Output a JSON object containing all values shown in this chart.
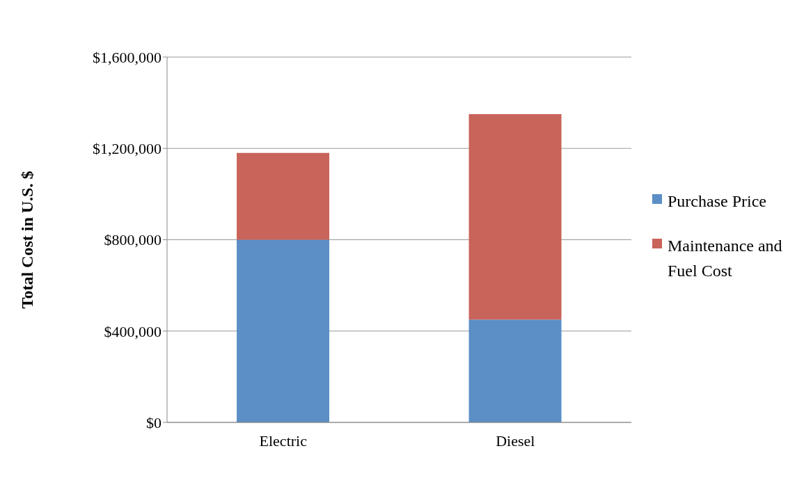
{
  "chart_data": {
    "type": "bar",
    "stacked": true,
    "ylabel": "Total Cost in U.S. $",
    "categories": [
      "Electric",
      "Diesel"
    ],
    "series": [
      {
        "name": "Purchase Price",
        "color": "#5b8fc5",
        "values": [
          800000,
          450000
        ]
      },
      {
        "name": "Maintenance and Fuel Cost",
        "color": "#c9645a",
        "values": [
          380000,
          900000
        ]
      }
    ],
    "ylim": [
      0,
      1600000
    ],
    "yticks": [
      {
        "value": 0,
        "label": "$0"
      },
      {
        "value": 400000,
        "label": "$400,000"
      },
      {
        "value": 800000,
        "label": "$800,000"
      },
      {
        "value": 1200000,
        "label": "$1,200,000"
      },
      {
        "value": 1600000,
        "label": "$1,600,000"
      }
    ],
    "grid": "y",
    "legend": "right"
  }
}
